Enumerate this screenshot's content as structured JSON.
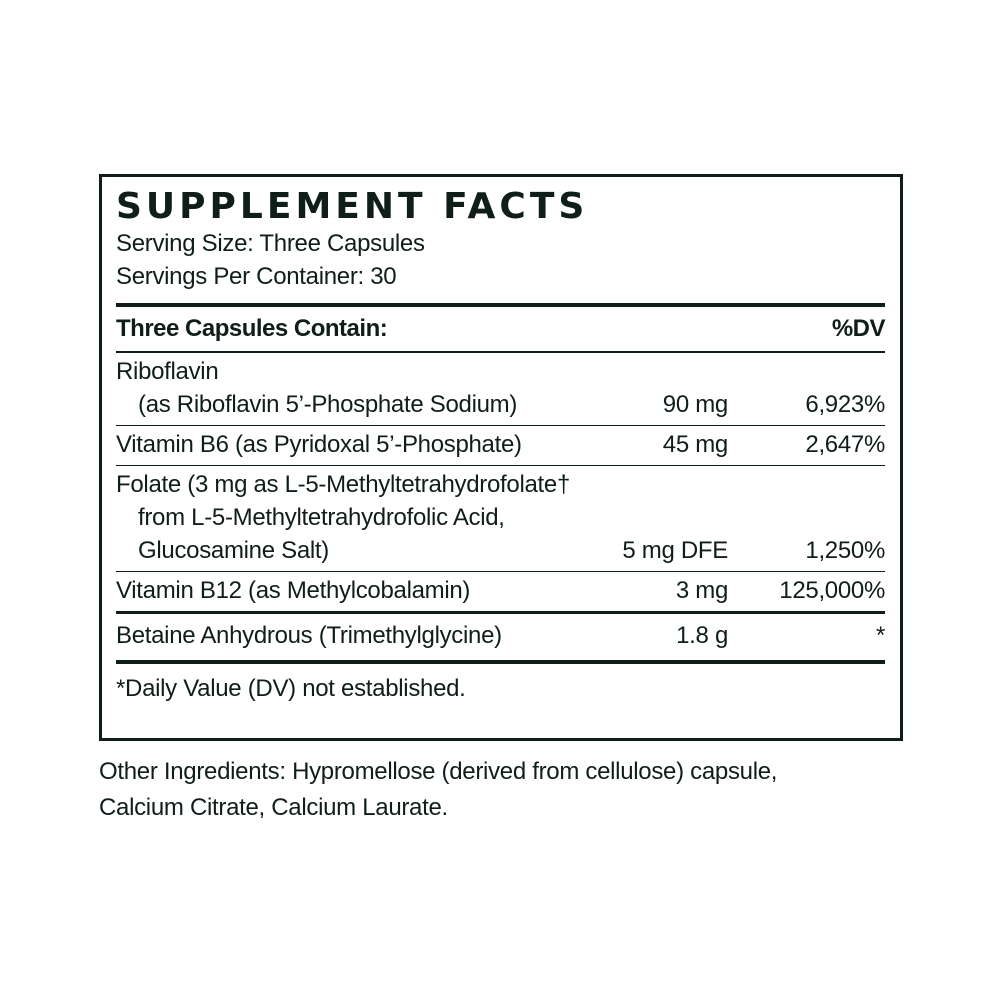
{
  "title": "SUPPLEMENT FACTS",
  "serving_size": "Serving Size: Three Capsules",
  "servings_per_container": "Servings Per Container: 30",
  "header": {
    "label": "Three Capsules Contain:",
    "dv": "%DV"
  },
  "rows": [
    {
      "lines": [
        "Riboflavin",
        "(as Riboflavin 5’-Phosphate Sodium)"
      ],
      "amount": "90 mg",
      "dv": "6,923%"
    },
    {
      "lines": [
        "Vitamin B6 (as Pyridoxal 5’-Phosphate)"
      ],
      "amount": "45 mg",
      "dv": "2,647%"
    },
    {
      "lines": [
        "Folate (3 mg as L-5-Methyltetrahydrofolate†",
        "from L-5-Methyltetrahydrofolic Acid,",
        "Glucosamine Salt)"
      ],
      "amount": "5 mg DFE",
      "dv": "1,250%"
    },
    {
      "lines": [
        "Vitamin B12 (as Methylcobalamin)"
      ],
      "amount": "3 mg",
      "dv": "125,000%"
    },
    {
      "lines": [
        "Betaine Anhydrous (Trimethylglycine)"
      ],
      "amount": "1.8 g",
      "dv": "*"
    }
  ],
  "footnote": "*Daily Value (DV) not established.",
  "other_ingredients": [
    "Other Ingredients: Hypromellose (derived from cellulose) capsule,",
    "Calcium Citrate, Calcium Laurate."
  ],
  "colors": {
    "ink": "#0f1f17",
    "background": "#ffffff"
  }
}
